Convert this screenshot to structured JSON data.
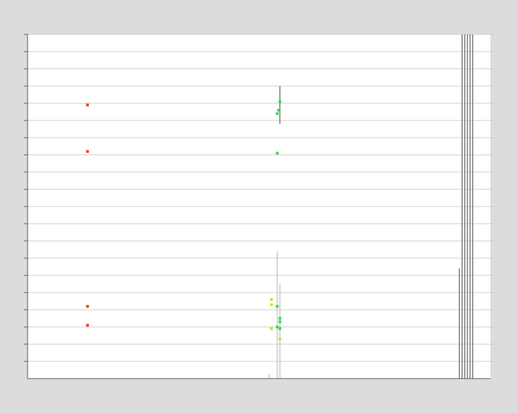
{
  "chart_data": {
    "type": "scatter",
    "title": "",
    "xlabel": "",
    "ylabel": "",
    "xlim": [
      0,
      100
    ],
    "ylim": [
      0,
      20
    ],
    "grid": true,
    "legend": "none",
    "colors": {
      "background": "#dcdcdc",
      "plot_bg": "#ffffff",
      "grid": "#cccccc",
      "axis": "#555555",
      "red": "#e8452c",
      "green": "#3adc50",
      "lime": "#b8e83a",
      "errorbar_dark": "#777777",
      "errorbar_light": "#c8c8c8"
    },
    "series": [
      {
        "color": "#e8452c",
        "points": [
          {
            "x": 13.5,
            "y": 15.9
          },
          {
            "x": 13.5,
            "y": 13.2
          },
          {
            "x": 13.5,
            "y": 4.2
          },
          {
            "x": 13.5,
            "y": 3.1
          }
        ]
      },
      {
        "color": "#3adc50",
        "points": [
          {
            "x": 56.5,
            "y": 15.6
          },
          {
            "x": 56.2,
            "y": 15.4
          },
          {
            "x": 56.8,
            "y": 16.1
          },
          {
            "x": 56.2,
            "y": 13.1
          },
          {
            "x": 56.2,
            "y": 4.2
          },
          {
            "x": 56.8,
            "y": 3.5
          },
          {
            "x": 56.8,
            "y": 3.3
          },
          {
            "x": 56.2,
            "y": 3.0
          },
          {
            "x": 56.8,
            "y": 2.9
          }
        ]
      },
      {
        "color": "#b8e83a",
        "points": [
          {
            "x": 54.9,
            "y": 4.6
          },
          {
            "x": 54.9,
            "y": 4.3
          },
          {
            "x": 54.9,
            "y": 2.9
          },
          {
            "x": 56.8,
            "y": 2.3
          }
        ]
      }
    ],
    "error_bars": [
      {
        "x": 56.8,
        "y_low": 14.8,
        "y_high": 17.0,
        "color": "#777777"
      },
      {
        "x": 56.2,
        "y_low": 0.0,
        "y_high": 7.4,
        "color": "#c8c8c8"
      },
      {
        "x": 56.8,
        "y_low": 0.0,
        "y_high": 5.5,
        "color": "#c8c8c8"
      },
      {
        "x": 54.4,
        "y_low": 0.0,
        "y_high": 0.3,
        "color": "#c8c8c8"
      },
      {
        "x": 97.2,
        "y_low": 0.0,
        "y_high": 6.4,
        "color": "#777777"
      },
      {
        "x": 97.8,
        "y_low": 0.0,
        "y_high": 20.0,
        "color": "#777777"
      },
      {
        "x": 98.4,
        "y_low": 0.0,
        "y_high": 20.0,
        "color": "#777777"
      },
      {
        "x": 99.0,
        "y_low": 0.0,
        "y_high": 20.0,
        "color": "#777777"
      },
      {
        "x": 99.6,
        "y_low": 0.0,
        "y_high": 20.0,
        "color": "#777777"
      },
      {
        "x": 100.2,
        "y_low": 0.0,
        "y_high": 20.0,
        "color": "#777777"
      }
    ]
  }
}
